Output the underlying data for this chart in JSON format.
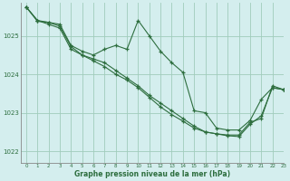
{
  "title": "Graphe pression niveau de la mer (hPa)",
  "bg_color": "#d4eeee",
  "grid_color": "#a0ccbb",
  "line_color": "#2d6e3e",
  "marker_color": "#2d6e3e",
  "xlim": [
    -0.5,
    23
  ],
  "ylim": [
    1021.7,
    1025.85
  ],
  "yticks": [
    1022,
    1023,
    1024,
    1025
  ],
  "xticks": [
    0,
    1,
    2,
    3,
    4,
    5,
    6,
    7,
    8,
    9,
    10,
    11,
    12,
    13,
    14,
    15,
    16,
    17,
    18,
    19,
    20,
    21,
    22,
    23
  ],
  "series": [
    [
      1025.75,
      1025.4,
      1025.35,
      1025.3,
      1024.75,
      1024.6,
      1024.5,
      1024.65,
      1024.75,
      1024.65,
      1025.4,
      1025.0,
      1024.6,
      1024.3,
      1024.05,
      1023.05,
      1023.0,
      1022.6,
      1022.55,
      1022.55,
      1022.8,
      1023.35,
      1023.65,
      1023.6
    ],
    [
      1025.75,
      1025.38,
      1025.35,
      1025.25,
      1024.72,
      1024.5,
      1024.35,
      1024.2,
      1024.0,
      1023.85,
      1023.65,
      1023.4,
      1023.15,
      1022.95,
      1022.78,
      1022.6,
      1022.5,
      1022.45,
      1022.42,
      1022.42,
      1022.75,
      1022.85,
      1023.7,
      1023.6
    ],
    [
      1025.75,
      1025.4,
      1025.3,
      1025.2,
      1024.65,
      1024.5,
      1024.4,
      1024.3,
      1024.1,
      1023.9,
      1023.7,
      1023.45,
      1023.25,
      1023.05,
      1022.85,
      1022.65,
      1022.5,
      1022.45,
      1022.4,
      1022.38,
      1022.7,
      1022.92,
      1023.65,
      1023.6
    ]
  ]
}
